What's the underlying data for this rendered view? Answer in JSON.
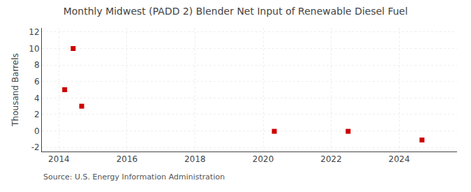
{
  "chart_data": {
    "type": "scatter",
    "title": "Monthly Midwest (PADD 2) Blender Net Input of Renewable Diesel Fuel",
    "y_label": "Thousand Barrels",
    "source": "Source: U.S. Energy Information Administration",
    "x": [
      2014.17,
      2014.42,
      2014.67,
      2020.33,
      2022.5,
      2024.67
    ],
    "values": [
      5.0,
      10.0,
      3.0,
      -0.05,
      -0.05,
      -1.1
    ],
    "color": "#cc0000",
    "marker": "square",
    "xlim": [
      2013.5,
      2025.7
    ],
    "ylim": [
      -2.5,
      12.5
    ],
    "xticks": [
      2014,
      2016,
      2018,
      2020,
      2022,
      2024
    ],
    "yticks": [
      -2,
      0,
      2,
      4,
      6,
      8,
      10,
      12
    ],
    "grid": true
  }
}
